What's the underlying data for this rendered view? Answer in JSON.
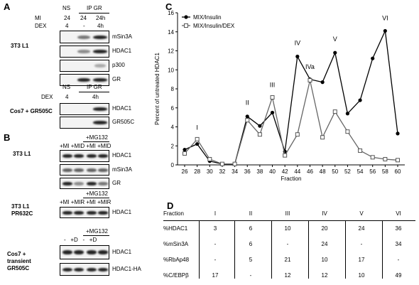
{
  "panels": {
    "A": "A",
    "B": "B",
    "C": "C",
    "D": "D"
  },
  "panelA": {
    "top": {
      "head": {
        "ns": "NS",
        "ip": "IP GR"
      },
      "rows": [
        {
          "label": "MI",
          "vals": [
            "24",
            "24",
            "24h"
          ]
        },
        {
          "label": "DEX",
          "vals": [
            "4",
            "-",
            "4h"
          ]
        }
      ],
      "cell_line": "3T3 L1",
      "blots": [
        "mSin3A",
        "HDAC1",
        "p300",
        "GR"
      ]
    },
    "bottom": {
      "head": {
        "ns": "NS",
        "ip": "IP GR"
      },
      "row": {
        "label": "DEX",
        "vals": [
          "4",
          "4h"
        ]
      },
      "cell_line": "Cos7 + GR505C",
      "blots": [
        "HDAC1",
        "GR505C"
      ]
    }
  },
  "panelB": {
    "g1": {
      "mg": "+MG132",
      "lanes": "+MI +MID +MI +MID",
      "cell_line": "3T3 L1",
      "blots": [
        "HDAC1",
        "mSin3A",
        "GR"
      ]
    },
    "g2": {
      "mg": "+MG132",
      "lanes": "+MI +MIR +MI +MIR",
      "cell_line": "3T3 L1 PR632C",
      "blots": [
        "HDAC1"
      ]
    },
    "g3": {
      "mg": "+MG132",
      "lanes": "-   +D   -   +D",
      "cell_line": "Cos7 + transient GR505C",
      "blots": [
        "HDAC1",
        "HDAC1-HA"
      ]
    }
  },
  "chart_data": {
    "type": "line",
    "xlabel": "Fraction",
    "ylabel": "Percent of untreated HDAC1",
    "ylim": [
      0,
      16
    ],
    "yticks": [
      0,
      2,
      4,
      6,
      8,
      10,
      12,
      14,
      16
    ],
    "x": [
      26,
      28,
      30,
      32,
      34,
      36,
      38,
      40,
      42,
      44,
      46,
      48,
      50,
      52,
      54,
      56,
      58,
      60
    ],
    "series": [
      {
        "name": "MIX/Insulin",
        "marker": "filled-circle",
        "values": [
          1.6,
          2.2,
          0.4,
          0.1,
          0.1,
          5.1,
          4.1,
          5.5,
          1.4,
          11.4,
          9.0,
          8.7,
          11.8,
          5.4,
          6.8,
          11.2,
          14.1,
          3.3
        ]
      },
      {
        "name": "MIX/Insulin/DEX",
        "marker": "open-square",
        "values": [
          1.2,
          2.7,
          0.6,
          0.1,
          0.1,
          4.7,
          3.2,
          7.1,
          1.0,
          3.2,
          8.9,
          2.9,
          5.6,
          3.5,
          1.5,
          0.8,
          0.6,
          0.5
        ]
      }
    ],
    "peak_labels": [
      {
        "text": "I",
        "x": 28,
        "y": 3.7
      },
      {
        "text": "II",
        "x": 36,
        "y": 6.3
      },
      {
        "text": "III",
        "x": 40,
        "y": 8.2
      },
      {
        "text": "IV",
        "x": 44,
        "y": 12.6
      },
      {
        "text": "IVa",
        "x": 46,
        "y": 10.1
      },
      {
        "text": "V",
        "x": 50,
        "y": 13.0
      },
      {
        "text": "VI",
        "x": 58,
        "y": 15.2
      }
    ]
  },
  "table": {
    "header": [
      "Fraction",
      "I",
      "II",
      "III",
      "IV",
      "V",
      "VI"
    ],
    "rows": [
      [
        "%HDAC1",
        "3",
        "6",
        "10",
        "20",
        "24",
        "36"
      ],
      [
        "%mSin3A",
        "-",
        "6",
        "-",
        "24",
        "-",
        "34"
      ],
      [
        "%RbAp48",
        "-",
        "5",
        "21",
        "10",
        "17",
        "-"
      ],
      [
        "%C/EBPβ",
        "17",
        "-",
        "12",
        "12",
        "10",
        "49"
      ]
    ]
  }
}
